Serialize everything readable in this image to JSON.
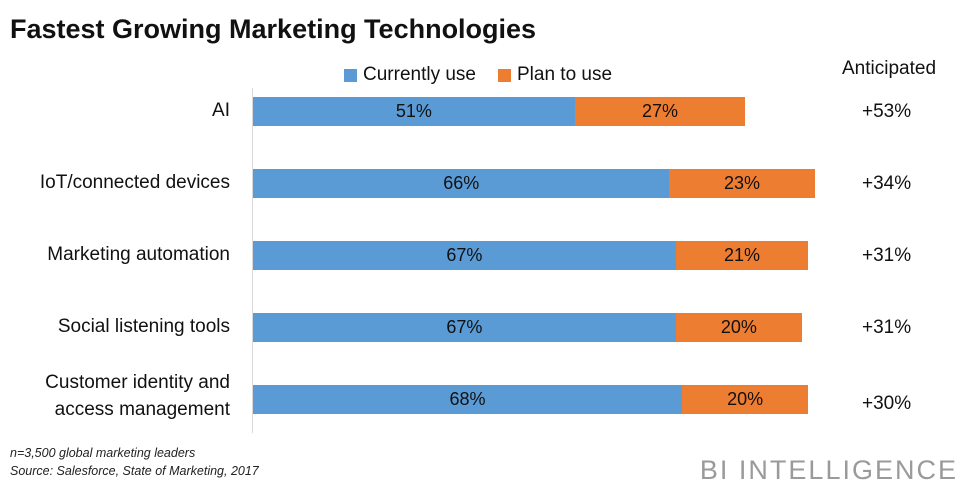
{
  "chart_data": {
    "type": "bar",
    "stacked": true,
    "orientation": "horizontal",
    "title": "Fastest Growing Marketing Technologies",
    "categories": [
      "AI",
      "IoT/connected devices",
      "Marketing automation",
      "Social listening tools",
      "Customer identity and access management"
    ],
    "series": [
      {
        "name": "Currently use",
        "color": "#5b9bd5",
        "values": [
          51,
          66,
          67,
          67,
          68
        ],
        "labels": [
          "51%",
          "66%",
          "67%",
          "67%",
          "68%"
        ]
      },
      {
        "name": "Plan to use",
        "color": "#ed7d31",
        "values": [
          27,
          23,
          21,
          20,
          20
        ],
        "labels": [
          "27%",
          "23%",
          "21%",
          "20%",
          "20%"
        ]
      }
    ],
    "anticipated_header": "Anticipated",
    "anticipated": [
      "+53%",
      "+34%",
      "+31%",
      "+31%",
      "+30%"
    ],
    "legend_position": "top",
    "grid": false
  },
  "footnote": {
    "sample": "n=3,500 global marketing leaders",
    "source": "Source: Salesforce, State of Marketing, 2017"
  },
  "logo": "BI INTELLIGENCE"
}
